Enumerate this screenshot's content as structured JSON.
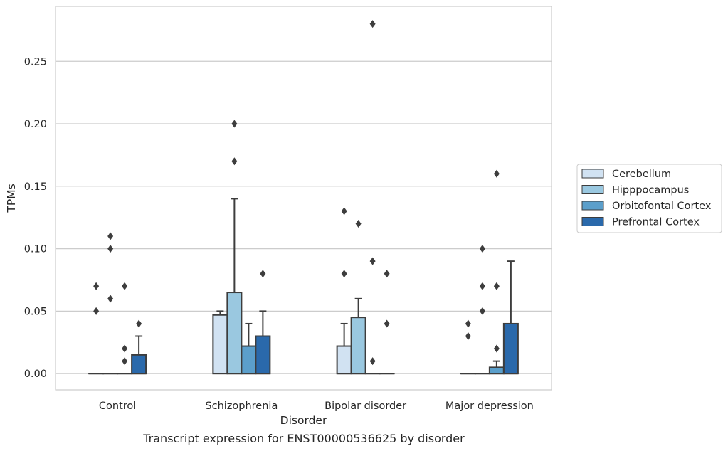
{
  "chart_data": {
    "type": "box",
    "title": "",
    "caption": "Transcript expression for ENST00000536625 by disorder",
    "xlabel": "Disorder",
    "ylabel": "TPMs",
    "ylim": [
      -0.013,
      0.294
    ],
    "yticks": [
      0.0,
      0.05,
      0.1,
      0.15,
      0.2,
      0.25
    ],
    "ytick_labels": [
      "0.00",
      "0.05",
      "0.10",
      "0.15",
      "0.20",
      "0.25"
    ],
    "grid": "horizontal",
    "legend_position": "right",
    "categories": [
      "Control",
      "Schizophrenia",
      "Bipolar disorder",
      "Major depression"
    ],
    "series": [
      {
        "name": "Cerebellum",
        "color": "#d1e2f2",
        "boxes": [
          {
            "q1": 0,
            "median": 0,
            "q3": 0,
            "whisker_low": 0,
            "whisker_high": 0,
            "outliers": [
              0.05,
              0.07
            ]
          },
          {
            "q1": 0,
            "median": 0.047,
            "q3": 0.047,
            "whisker_low": 0,
            "whisker_high": 0.05,
            "outliers": []
          },
          {
            "q1": 0,
            "median": 0,
            "q3": 0.022,
            "whisker_low": 0,
            "whisker_high": 0.04,
            "outliers": [
              0.08,
              0.13
            ]
          },
          {
            "q1": 0,
            "median": 0,
            "q3": 0,
            "whisker_low": 0,
            "whisker_high": 0,
            "outliers": [
              0.03,
              0.04
            ]
          }
        ]
      },
      {
        "name": "Hipppocampus",
        "color": "#9ac8e0",
        "boxes": [
          {
            "q1": 0,
            "median": 0,
            "q3": 0,
            "whisker_low": 0,
            "whisker_high": 0,
            "outliers": [
              0.06,
              0.1,
              0.11
            ]
          },
          {
            "q1": 0,
            "median": 0,
            "q3": 0.065,
            "whisker_low": 0,
            "whisker_high": 0.14,
            "outliers": [
              0.17,
              0.2
            ]
          },
          {
            "q1": 0,
            "median": 0,
            "q3": 0.045,
            "whisker_low": 0,
            "whisker_high": 0.06,
            "outliers": [
              0.12
            ]
          },
          {
            "q1": 0,
            "median": 0,
            "q3": 0,
            "whisker_low": 0,
            "whisker_high": 0,
            "outliers": [
              0.05,
              0.07,
              0.1
            ]
          }
        ]
      },
      {
        "name": "Orbitofontal Cortex",
        "color": "#5b9fcb",
        "boxes": [
          {
            "q1": 0,
            "median": 0,
            "q3": 0,
            "whisker_low": 0,
            "whisker_high": 0,
            "outliers": [
              0.01,
              0.02,
              0.07
            ]
          },
          {
            "q1": 0,
            "median": 0,
            "q3": 0.022,
            "whisker_low": 0,
            "whisker_high": 0.04,
            "outliers": []
          },
          {
            "q1": 0,
            "median": 0,
            "q3": 0,
            "whisker_low": 0,
            "whisker_high": 0,
            "outliers": [
              0.01,
              0.09,
              0.28
            ]
          },
          {
            "q1": 0,
            "median": 0,
            "q3": 0.005,
            "whisker_low": 0,
            "whisker_high": 0.01,
            "outliers": [
              0.02,
              0.07,
              0.16
            ]
          }
        ]
      },
      {
        "name": "Prefrontal Cortex",
        "color": "#2a69ab",
        "boxes": [
          {
            "q1": 0,
            "median": 0,
            "q3": 0.015,
            "whisker_low": 0,
            "whisker_high": 0.03,
            "outliers": [
              0.04
            ]
          },
          {
            "q1": 0,
            "median": 0,
            "q3": 0.03,
            "whisker_low": 0,
            "whisker_high": 0.05,
            "outliers": [
              0.08
            ]
          },
          {
            "q1": 0,
            "median": 0,
            "q3": 0,
            "whisker_low": 0,
            "whisker_high": 0,
            "outliers": [
              0.04,
              0.08
            ]
          },
          {
            "q1": 0,
            "median": 0,
            "q3": 0.04,
            "whisker_low": 0,
            "whisker_high": 0.09,
            "outliers": []
          }
        ]
      }
    ]
  }
}
